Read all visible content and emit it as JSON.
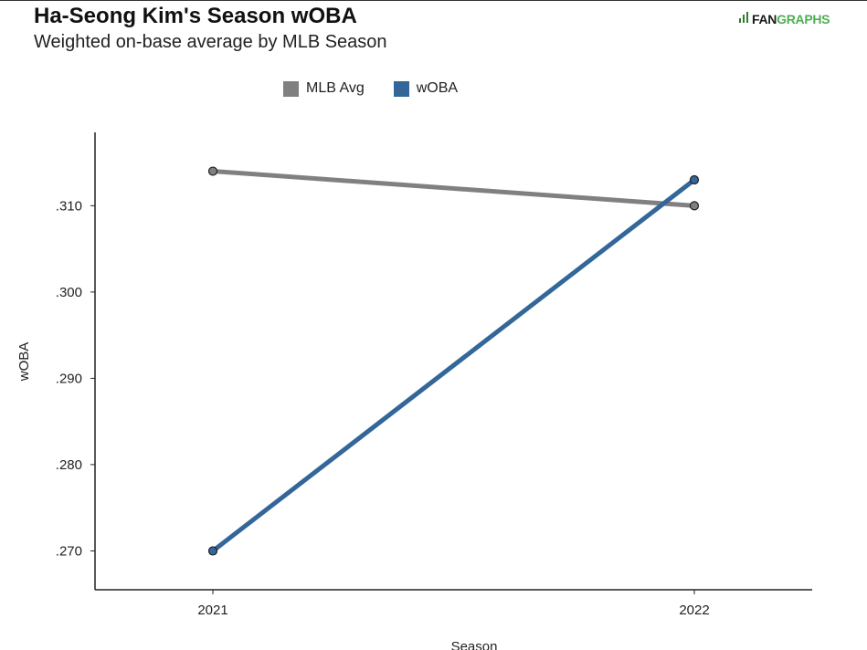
{
  "header": {
    "title": "Ha-Seong Kim's Season wOBA",
    "subtitle": "Weighted on-base average by MLB Season",
    "logo_text_a": "FAN",
    "logo_text_b": "GRAPHS"
  },
  "chart_data": {
    "type": "line",
    "title": "Ha-Seong Kim's Season wOBA",
    "subtitle": "Weighted on-base average by MLB Season",
    "xlabel": "Season",
    "ylabel": "wOBA",
    "x": [
      "2021",
      "2022"
    ],
    "series": [
      {
        "name": "MLB Avg",
        "color": "#808080",
        "values": [
          0.314,
          0.31
        ]
      },
      {
        "name": "wOBA",
        "color": "#336699",
        "values": [
          0.27,
          0.313
        ]
      }
    ],
    "yticks": [
      ".270",
      ".280",
      ".290",
      ".300",
      ".310"
    ],
    "ytick_values": [
      0.27,
      0.28,
      0.29,
      0.3,
      0.31
    ],
    "ylim": [
      0.2655,
      0.3185
    ],
    "grid": false,
    "legend_position": "top-center"
  }
}
